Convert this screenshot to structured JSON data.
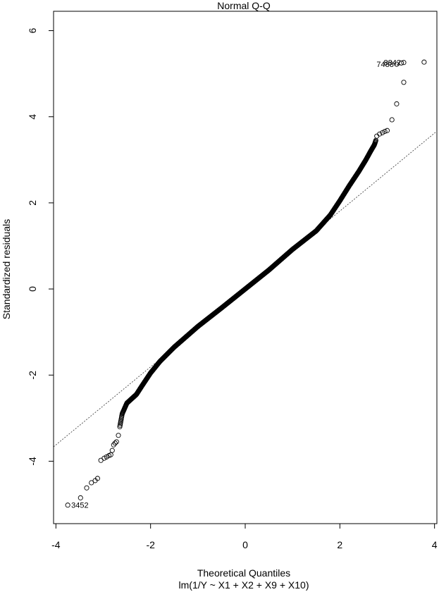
{
  "chart_data": {
    "type": "scatter",
    "title": "Normal Q-Q",
    "xlabel": "Theoretical Quantiles",
    "subtitle": "lm(1/Y ~ X1 + X2 + X9 + X10)",
    "ylabel": "Standardized residuals",
    "xlim": [
      -4.05,
      4.05
    ],
    "ylim": [
      -5.45,
      6.45
    ],
    "x_ticks": [
      "-4",
      "-2",
      "0",
      "2",
      "4"
    ],
    "y_ticks": [
      "-4",
      "-2",
      "0",
      "2",
      "4",
      "6"
    ],
    "grid": false,
    "reference_line": {
      "slope": 0.905,
      "intercept": 0.0,
      "style": "dotted"
    },
    "outlier_points": [
      {
        "x": -3.75,
        "y": -5.02,
        "label": "3452"
      },
      {
        "x": 3.2,
        "y": 5.22,
        "label": "7488"
      },
      {
        "x": 3.35,
        "y": 5.26,
        "label": "8842"
      }
    ],
    "tail_points": [
      {
        "x": -3.48,
        "y": -4.85
      },
      {
        "x": -3.35,
        "y": -4.62
      },
      {
        "x": -3.25,
        "y": -4.5
      },
      {
        "x": -3.17,
        "y": -4.45
      },
      {
        "x": -3.12,
        "y": -4.4
      },
      {
        "x": -3.05,
        "y": -3.98
      },
      {
        "x": -2.98,
        "y": -3.93
      },
      {
        "x": -2.93,
        "y": -3.9
      },
      {
        "x": -2.88,
        "y": -3.87
      },
      {
        "x": -2.84,
        "y": -3.85
      },
      {
        "x": -2.81,
        "y": -3.75
      },
      {
        "x": -2.78,
        "y": -3.62
      },
      {
        "x": -2.75,
        "y": -3.58
      },
      {
        "x": -2.72,
        "y": -3.55
      },
      {
        "x": -2.68,
        "y": -3.4
      },
      {
        "x": 2.78,
        "y": 3.55
      },
      {
        "x": 2.84,
        "y": 3.6
      },
      {
        "x": 2.9,
        "y": 3.63
      },
      {
        "x": 2.95,
        "y": 3.66
      },
      {
        "x": 3.0,
        "y": 3.68
      },
      {
        "x": 3.1,
        "y": 3.93
      },
      {
        "x": 3.2,
        "y": 4.3
      },
      {
        "x": 3.35,
        "y": 4.8
      },
      {
        "x": 3.3,
        "y": 5.25
      },
      {
        "x": 3.78,
        "y": 5.27
      }
    ],
    "curve_knots": [
      [
        -2.65,
        -3.2
      ],
      [
        -2.6,
        -2.9
      ],
      [
        -2.5,
        -2.65
      ],
      [
        -2.4,
        -2.55
      ],
      [
        -2.3,
        -2.45
      ],
      [
        -2.2,
        -2.28
      ],
      [
        -2.0,
        -1.95
      ],
      [
        -1.8,
        -1.68
      ],
      [
        -1.5,
        -1.35
      ],
      [
        -1.0,
        -0.87
      ],
      [
        -0.5,
        -0.44
      ],
      [
        0.0,
        0.0
      ],
      [
        0.5,
        0.44
      ],
      [
        1.0,
        0.92
      ],
      [
        1.5,
        1.35
      ],
      [
        1.8,
        1.72
      ],
      [
        2.0,
        2.05
      ],
      [
        2.2,
        2.4
      ],
      [
        2.4,
        2.73
      ],
      [
        2.55,
        3.0
      ],
      [
        2.65,
        3.2
      ],
      [
        2.73,
        3.35
      ],
      [
        2.76,
        3.45
      ]
    ],
    "curve_n": 900,
    "point_color": "#000000"
  }
}
